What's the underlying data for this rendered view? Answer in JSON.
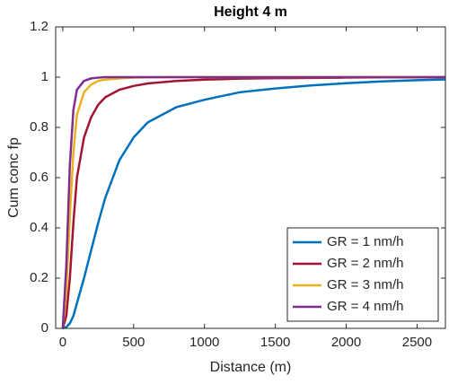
{
  "chart_data": {
    "type": "line",
    "title": "Height 4 m",
    "x_label": "Distance (m)",
    "y_label": "Cum conc fp",
    "x": [
      0,
      25,
      50,
      75,
      100,
      150,
      200,
      250,
      300,
      400,
      500,
      600,
      800,
      1000,
      1250,
      1500,
      1750,
      2000,
      2250,
      2500,
      2700
    ],
    "series": [
      {
        "name": "GR = 1 nm/h",
        "color": "#0072bd",
        "values": [
          0,
          0.005,
          0.02,
          0.05,
          0.1,
          0.2,
          0.31,
          0.42,
          0.52,
          0.67,
          0.76,
          0.82,
          0.88,
          0.91,
          0.94,
          0.955,
          0.967,
          0.976,
          0.983,
          0.988,
          0.991
        ]
      },
      {
        "name": "GR = 2 nm/h",
        "color": "#a2142f",
        "values": [
          0,
          0.05,
          0.2,
          0.42,
          0.6,
          0.76,
          0.84,
          0.89,
          0.92,
          0.95,
          0.965,
          0.975,
          0.985,
          0.99,
          0.994,
          0.996,
          0.997,
          0.998,
          0.999,
          0.999,
          1
        ]
      },
      {
        "name": "GR = 3 nm/h",
        "color": "#edb120",
        "values": [
          0,
          0.15,
          0.45,
          0.7,
          0.85,
          0.94,
          0.97,
          0.985,
          0.99,
          0.995,
          0.998,
          0.999,
          1,
          1,
          1,
          1,
          1,
          1,
          1,
          1,
          1
        ]
      },
      {
        "name": "GR = 4 nm/h",
        "color": "#7e2f8e",
        "values": [
          0,
          0.25,
          0.65,
          0.87,
          0.95,
          0.985,
          0.995,
          0.998,
          1,
          1,
          1,
          1,
          1,
          1,
          1,
          1,
          1,
          1,
          1,
          1,
          1
        ]
      }
    ],
    "xlim": [
      -50,
      2700
    ],
    "ylim": [
      0,
      1.2
    ],
    "xticks": [
      0,
      500,
      1000,
      1500,
      2000,
      2500
    ],
    "yticks": [
      0,
      0.2,
      0.4,
      0.6,
      0.8,
      1,
      1.2
    ],
    "legend": "southeast"
  }
}
